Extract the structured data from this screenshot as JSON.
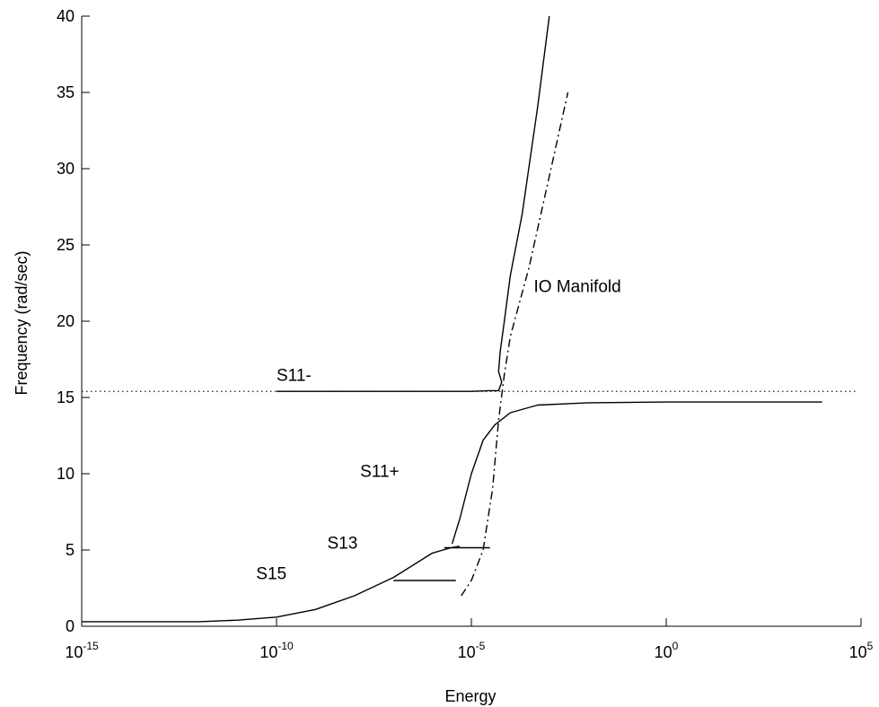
{
  "chart_data": {
    "type": "line",
    "title": "",
    "xlabel": "Energy",
    "ylabel": "Frequency (rad/sec)",
    "xscale": "log",
    "xlim": [
      1e-15,
      100000.0
    ],
    "ylim": [
      0,
      40
    ],
    "grid": false,
    "x_ticks": [
      {
        "base": "10",
        "exp": "-15",
        "value": 1e-15
      },
      {
        "base": "10",
        "exp": "-10",
        "value": 1e-10
      },
      {
        "base": "10",
        "exp": "-5",
        "value": 1e-05
      },
      {
        "base": "10",
        "exp": "0",
        "value": 1
      },
      {
        "base": "10",
        "exp": "5",
        "value": 100000.0
      }
    ],
    "y_ticks": [
      "0",
      "5",
      "10",
      "15",
      "20",
      "25",
      "30",
      "35",
      "40"
    ],
    "reference_line": {
      "y": 15.4,
      "style": "dotted"
    },
    "series": [
      {
        "style": "solid",
        "x": [
          1e-15,
          1e-12,
          1e-11,
          1e-10,
          1e-09,
          1e-08,
          1e-07,
          1e-06,
          3e-06,
          5e-06
        ],
        "y": [
          0.3,
          0.3,
          0.4,
          0.6,
          1.1,
          2.0,
          3.2,
          4.8,
          5.15,
          5.25
        ]
      },
      {
        "style": "solid",
        "x": [
          3.2e-06,
          5e-06,
          1e-05,
          2e-05,
          4e-05,
          0.0001,
          0.0005,
          0.01,
          1,
          100.0,
          10000.0
        ],
        "y": [
          5.4,
          7.0,
          10.0,
          12.2,
          13.2,
          14.0,
          14.5,
          14.65,
          14.7,
          14.7,
          14.7
        ]
      },
      {
        "style": "solid",
        "x": [
          1e-10,
          1e-07,
          1e-05,
          3e-05,
          5e-05,
          6e-05,
          5e-05,
          5.5e-05,
          7e-05,
          0.0001,
          0.0002,
          0.0005,
          0.001
        ],
        "y": [
          15.4,
          15.4,
          15.4,
          15.45,
          15.45,
          16.0,
          16.7,
          18.0,
          20.0,
          23.0,
          27.0,
          34.0,
          40.0
        ]
      },
      {
        "style": "dashdot",
        "x": [
          5.5e-06,
          1e-05,
          2e-05,
          3.5e-05,
          5e-05,
          7e-05,
          0.0001,
          0.0003,
          0.001,
          0.003
        ],
        "y": [
          2.0,
          3.0,
          5.0,
          9.0,
          13.5,
          16.5,
          19.0,
          23.5,
          29.5,
          35.0
        ]
      },
      {
        "style": "solid",
        "x": [
          1e-07,
          4e-06
        ],
        "y": [
          3.0,
          3.0
        ]
      },
      {
        "style": "solid",
        "x": [
          2e-06,
          3e-05
        ],
        "y": [
          5.15,
          5.15
        ]
      }
    ],
    "annotations": [
      {
        "text": "IO Manifold",
        "x": 0.0004,
        "y": 21.9
      },
      {
        "text": "S11-",
        "x": 1e-10,
        "y": 16.1
      },
      {
        "text": "S11+",
        "x": 1.4e-08,
        "y": 9.8
      },
      {
        "text": "S13",
        "x": 2e-09,
        "y": 5.1
      },
      {
        "text": "S15",
        "x": 3e-11,
        "y": 3.1
      }
    ]
  }
}
